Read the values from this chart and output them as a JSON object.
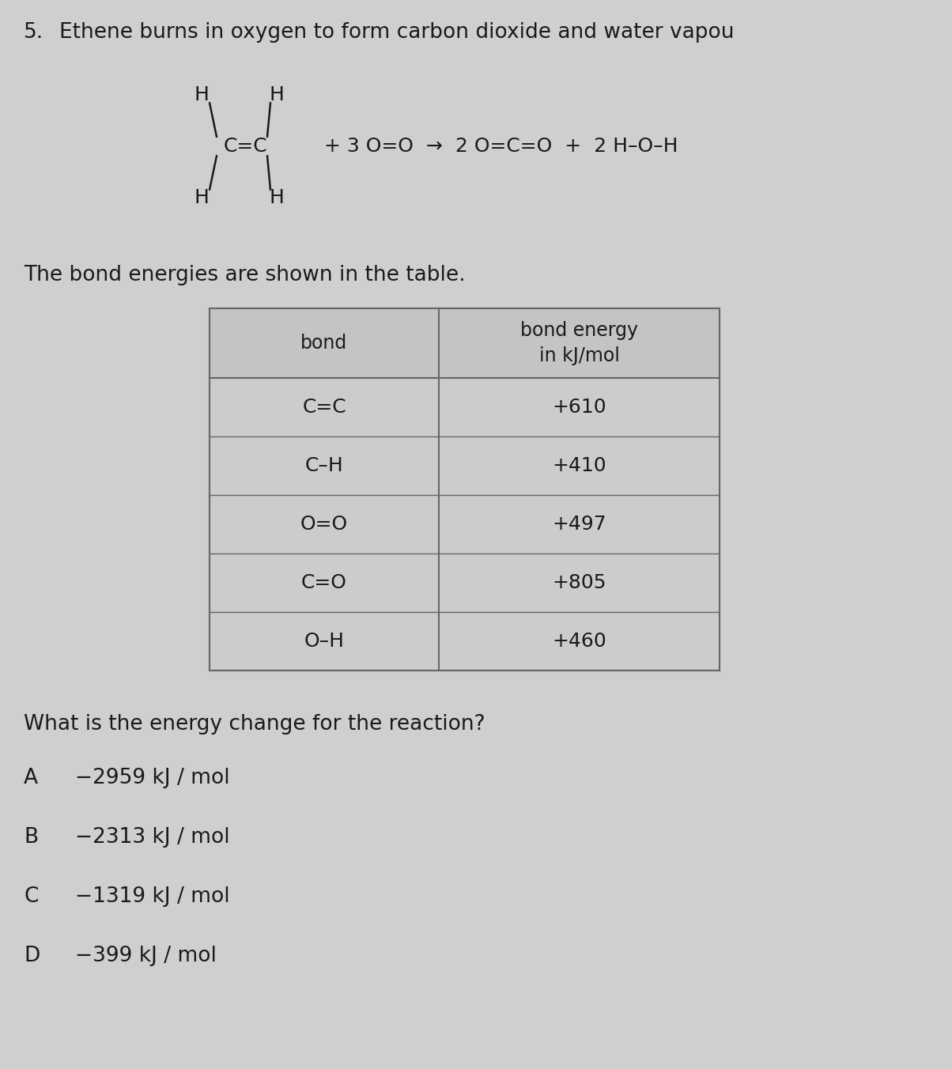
{
  "question_number": "5.",
  "question_text": "Ethene burns in oxygen to form carbon dioxide and water vapou",
  "table_header_col1": "bond",
  "table_header_col2": "bond energy\nin kJ/mol",
  "table_rows": [
    [
      "C=C",
      "+610"
    ],
    [
      "C–H",
      "+410"
    ],
    [
      "O=O",
      "+497"
    ],
    [
      "C=O",
      "+805"
    ],
    [
      "O–H",
      "+460"
    ]
  ],
  "question2": "What is the energy change for the reaction?",
  "options": [
    [
      "A",
      "−2959 kJ / mol"
    ],
    [
      "B",
      "−2313 kJ / mol"
    ],
    [
      "C",
      "−1319 kJ / mol"
    ],
    [
      "D",
      "−399 kJ / mol"
    ]
  ],
  "bg_color": "#d0cfcf",
  "table_border": "#666666",
  "text_color": "#1a1a1a",
  "fs_title": 19,
  "fs_eq": 18,
  "fs_table_hdr": 17,
  "fs_table_row": 18,
  "fs_options": 19
}
